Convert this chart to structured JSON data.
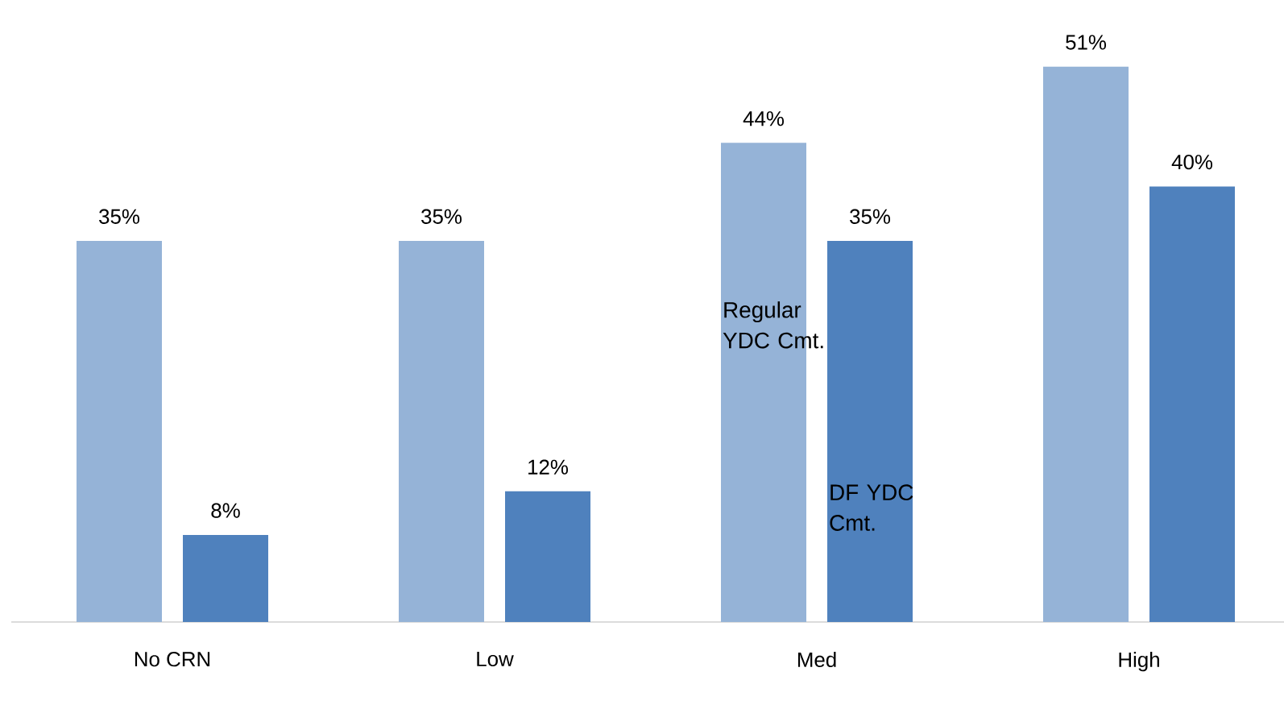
{
  "chart_data": {
    "type": "bar",
    "categories": [
      "No CRN",
      "Low",
      "Med",
      "High"
    ],
    "series": [
      {
        "name": "Regular YDC Cmt.",
        "color": "#95b3d7",
        "values": [
          35,
          35,
          44,
          51
        ],
        "value_labels": [
          "35%",
          "35%",
          "44%",
          "51%"
        ]
      },
      {
        "name": "DF YDC Cmt.",
        "color": "#4f81bd",
        "values": [
          8,
          12,
          35,
          40
        ],
        "value_labels": [
          "8%",
          "12%",
          "35%",
          "40%"
        ]
      }
    ],
    "legend": false
  }
}
